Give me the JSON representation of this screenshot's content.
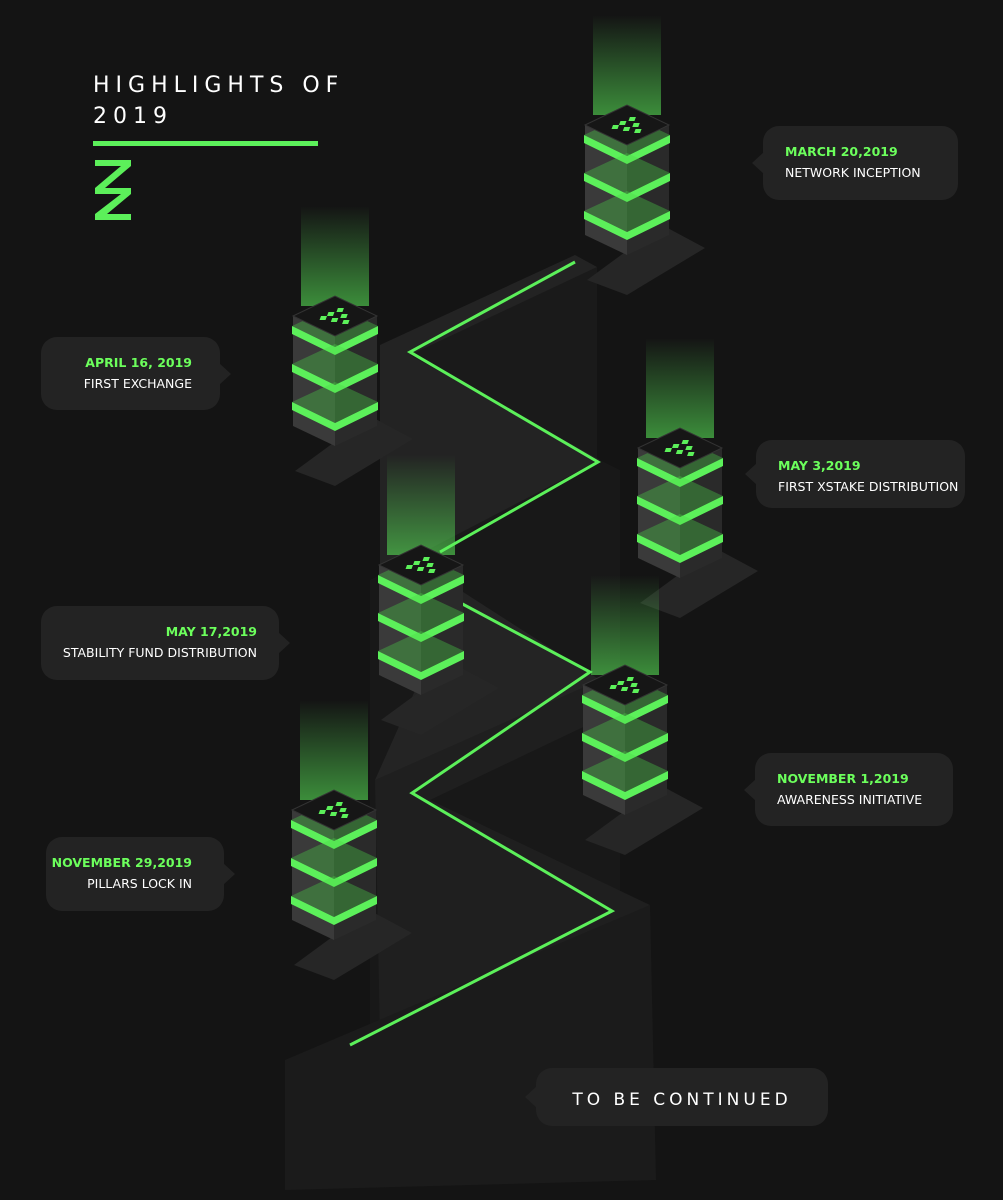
{
  "header": {
    "title_line1": "HIGHLIGHTS OF",
    "title_line2": "2019"
  },
  "colors": {
    "background": "#141414",
    "accent": "#5cf05a",
    "bubble": "#232323",
    "date_text": "#6cff5c"
  },
  "milestones": [
    {
      "date": "MARCH 20,2019",
      "label": "NETWORK INCEPTION"
    },
    {
      "date": "APRIL 16, 2019",
      "label": "FIRST EXCHANGE"
    },
    {
      "date": "MAY 3,2019",
      "label": "FIRST XSTAKE DISTRIBUTION"
    },
    {
      "date": "MAY 17,2019",
      "label": "STABILITY FUND DISTRIBUTION"
    },
    {
      "date": "NOVEMBER 1,2019",
      "label": "AWARENESS INITIATIVE"
    },
    {
      "date": "NOVEMBER 29,2019",
      "label": "PILLARS LOCK IN"
    }
  ],
  "footer": {
    "continued": "TO BE CONTINUED"
  }
}
